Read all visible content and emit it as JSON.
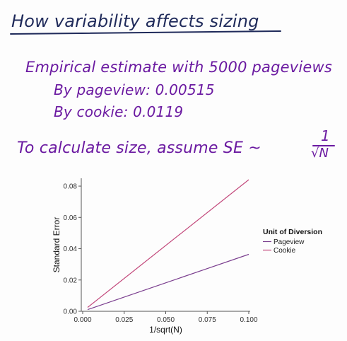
{
  "notes": {
    "title": "How variability affects sizing",
    "line1": "Empirical estimate with 5000 pageviews",
    "line2": "By pageview: 0.00515",
    "line3": "By cookie: 0.0119",
    "line4": "To calculate size, assume SE ~",
    "fraction_numerator": "1",
    "fraction_denominator": "N"
  },
  "colors": {
    "ink_title": "#1f2a5a",
    "ink_notes": "#6b1aa1",
    "pageview_line": "#7b3f8f",
    "cookie_line": "#c2477a"
  },
  "chart_data": {
    "type": "line",
    "xlabel": "1/sqrt(N)",
    "ylabel": "Standard Error",
    "xlim": [
      0,
      0.1
    ],
    "ylim": [
      0,
      0.085
    ],
    "x_ticks": [
      "0.000",
      "0.025",
      "0.050",
      "0.075",
      "0.100"
    ],
    "y_ticks": [
      "0.00",
      "0.02",
      "0.04",
      "0.06",
      "0.08"
    ],
    "legend": {
      "title": "Unit of Diversion",
      "position": "right"
    },
    "grid": false,
    "series": [
      {
        "name": "Pageview",
        "x": [
          0.003,
          0.1
        ],
        "y": [
          0.0011,
          0.0364
        ]
      },
      {
        "name": "Cookie",
        "x": [
          0.003,
          0.1
        ],
        "y": [
          0.0025,
          0.0841
        ]
      }
    ]
  }
}
